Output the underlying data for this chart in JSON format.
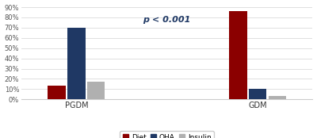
{
  "groups": [
    "PGDM",
    "GDM"
  ],
  "categories": [
    "Diet",
    "OHA",
    "Insulin"
  ],
  "values": {
    "PGDM": [
      13,
      70,
      17
    ],
    "GDM": [
      86,
      10,
      3
    ]
  },
  "colors": [
    "#8B0000",
    "#1F3864",
    "#B0B0B0"
  ],
  "annotation": "p < 0.001",
  "annotation_fx": 0.5,
  "annotation_fy": 0.86,
  "ylim": [
    0,
    90
  ],
  "yticks": [
    0,
    10,
    20,
    30,
    40,
    50,
    60,
    70,
    80,
    90
  ],
  "ytick_labels": [
    "0%",
    "10%",
    "20%",
    "30%",
    "40%",
    "50%",
    "60%",
    "70%",
    "80%",
    "90%"
  ],
  "background_color": "#FFFFFF",
  "bar_width": 0.055,
  "group_centers": [
    0.22,
    0.78
  ]
}
